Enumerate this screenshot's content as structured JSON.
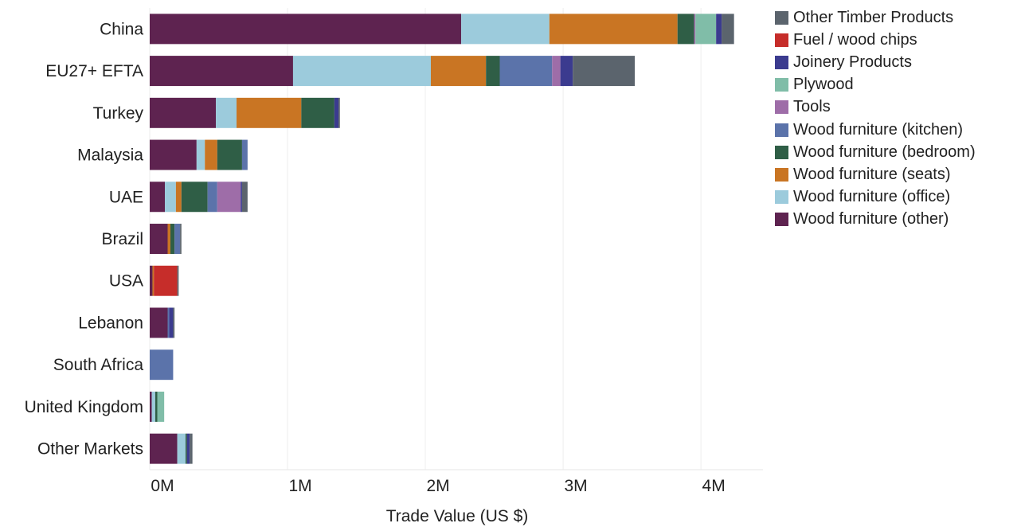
{
  "chart_data": {
    "type": "bar",
    "orientation": "horizontal",
    "stacked": true,
    "xlabel": "Trade Value (US $)",
    "ylabel": "",
    "xlim": [
      0,
      4450000
    ],
    "x_ticks": [
      {
        "value": 0,
        "label": "0M"
      },
      {
        "value": 1000000,
        "label": "1M"
      },
      {
        "value": 2000000,
        "label": "2M"
      },
      {
        "value": 3000000,
        "label": "3M"
      },
      {
        "value": 4000000,
        "label": "4M"
      }
    ],
    "grid": "vertical",
    "legend_position": "right",
    "categories": [
      "China",
      "EU27+ EFTA",
      "Turkey",
      "Malaysia",
      "UAE",
      "Brazil",
      "USA",
      "Lebanon",
      "South Africa",
      "United Kingdom",
      "Other Markets"
    ],
    "series": [
      {
        "name": "Wood furniture (other)",
        "color": "#5e2350",
        "values": [
          2260000,
          1040000,
          480000,
          340000,
          110000,
          130000,
          20000,
          130000,
          0,
          15000,
          200000
        ]
      },
      {
        "name": "Wood furniture (office)",
        "color": "#9ccbdc",
        "values": [
          640000,
          1000000,
          150000,
          60000,
          80000,
          0,
          0,
          0,
          0,
          25000,
          60000
        ]
      },
      {
        "name": "Wood furniture (seats)",
        "color": "#c97523",
        "values": [
          930000,
          400000,
          470000,
          90000,
          40000,
          20000,
          10000,
          0,
          0,
          0,
          0
        ]
      },
      {
        "name": "Wood furniture (bedroom)",
        "color": "#2f5e46",
        "values": [
          120000,
          100000,
          240000,
          180000,
          190000,
          30000,
          0,
          0,
          0,
          15000,
          10000
        ]
      },
      {
        "name": "Wood furniture (kitchen)",
        "color": "#5b73aa",
        "values": [
          0,
          380000,
          0,
          40000,
          70000,
          40000,
          0,
          10000,
          170000,
          0,
          0
        ]
      },
      {
        "name": "Tools",
        "color": "#9e6da8",
        "values": [
          10000,
          60000,
          0,
          0,
          170000,
          0,
          0,
          0,
          0,
          0,
          0
        ]
      },
      {
        "name": "Plywood",
        "color": "#80bda8",
        "values": [
          150000,
          0,
          0,
          0,
          0,
          0,
          0,
          0,
          0,
          50000,
          0
        ]
      },
      {
        "name": "Joinery Products",
        "color": "#3b3b8f",
        "values": [
          40000,
          90000,
          30000,
          0,
          10000,
          0,
          0,
          30000,
          0,
          0,
          20000
        ]
      },
      {
        "name": "Fuel / wood chips",
        "color": "#c62d2a",
        "values": [
          0,
          0,
          0,
          0,
          0,
          0,
          170000,
          0,
          0,
          0,
          0
        ]
      },
      {
        "name": "Other Timber Products",
        "color": "#5b646d",
        "values": [
          90000,
          450000,
          10000,
          0,
          40000,
          10000,
          10000,
          10000,
          0,
          0,
          20000
        ]
      }
    ]
  }
}
